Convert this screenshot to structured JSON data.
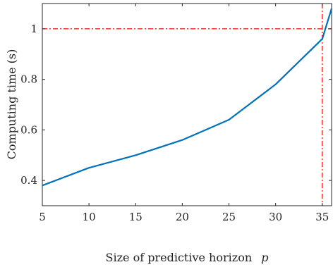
{
  "chart_data": {
    "type": "line",
    "xlabel": "Size of predictive horizon",
    "xlabel_var": "p",
    "ylabel": "Computing time (s)",
    "xlim": [
      5,
      36
    ],
    "ylim": [
      0.3,
      1.1
    ],
    "xticks": [
      5,
      10,
      15,
      20,
      25,
      30,
      35
    ],
    "xtick_labels": [
      "5",
      "10",
      "15",
      "20",
      "25",
      "30",
      "35"
    ],
    "yticks": [
      0.4,
      0.6,
      0.8,
      1.0
    ],
    "ytick_labels": [
      "0.4",
      "0.6",
      "0.8",
      "1"
    ],
    "series": [
      {
        "x": [
          5,
          10,
          15,
          20,
          25,
          30,
          35,
          36
        ],
        "values": [
          0.38,
          0.45,
          0.5,
          0.56,
          0.64,
          0.78,
          0.96,
          1.08
        ],
        "color": "#0072BD"
      }
    ],
    "reference_lines": {
      "y": 1.0,
      "x": 35,
      "color": "#FF0000",
      "style": "dash-dot"
    },
    "grid": false
  }
}
